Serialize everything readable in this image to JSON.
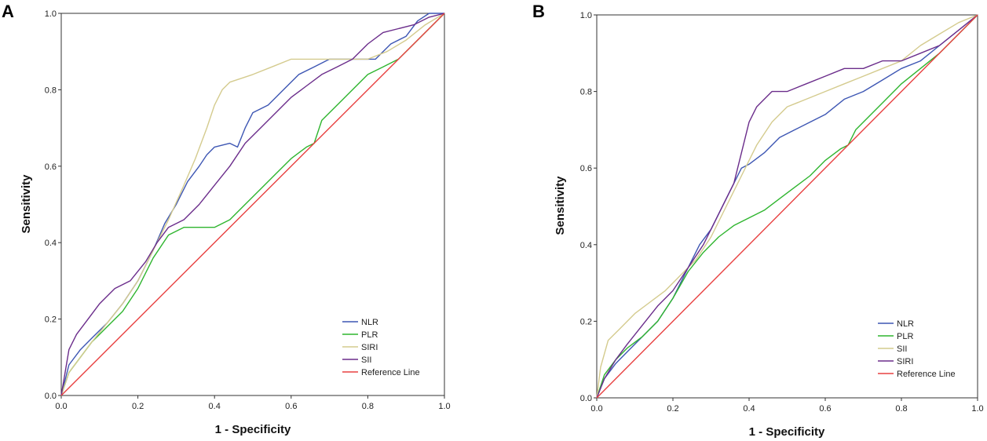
{
  "chart_data": [
    {
      "panel_label": "A",
      "type": "line",
      "xlabel": "1 - Specificity",
      "ylabel": "Sensitivity",
      "xlim": [
        0,
        1
      ],
      "ylim": [
        0,
        1
      ],
      "x_ticks": [
        "0.0",
        "0.2",
        "0.4",
        "0.6",
        "0.8",
        "1.0"
      ],
      "y_ticks": [
        "0.0",
        "0.2",
        "0.4",
        "0.6",
        "0.8",
        "1.0"
      ],
      "legend_position": "bottom-right",
      "series": [
        {
          "name": "NLR",
          "color": "#3d56b3",
          "x": [
            0,
            0.01,
            0.02,
            0.05,
            0.08,
            0.12,
            0.16,
            0.2,
            0.24,
            0.27,
            0.3,
            0.33,
            0.36,
            0.38,
            0.4,
            0.44,
            0.46,
            0.48,
            0.5,
            0.54,
            0.58,
            0.62,
            0.66,
            0.7,
            0.74,
            0.78,
            0.82,
            0.86,
            0.9,
            0.93,
            0.96,
            1.0
          ],
          "y": [
            0,
            0.04,
            0.08,
            0.12,
            0.15,
            0.19,
            0.24,
            0.3,
            0.38,
            0.45,
            0.5,
            0.56,
            0.6,
            0.63,
            0.65,
            0.66,
            0.65,
            0.7,
            0.74,
            0.76,
            0.8,
            0.84,
            0.86,
            0.88,
            0.88,
            0.88,
            0.88,
            0.92,
            0.94,
            0.98,
            1.0,
            1.0
          ]
        },
        {
          "name": "PLR",
          "color": "#2fb52f",
          "x": [
            0,
            0.02,
            0.05,
            0.08,
            0.12,
            0.16,
            0.2,
            0.24,
            0.28,
            0.32,
            0.36,
            0.4,
            0.44,
            0.48,
            0.52,
            0.56,
            0.6,
            0.64,
            0.66,
            0.68,
            0.72,
            0.76,
            0.8,
            0.84,
            0.88,
            0.92,
            0.96,
            1.0
          ],
          "y": [
            0,
            0.06,
            0.1,
            0.14,
            0.18,
            0.22,
            0.28,
            0.36,
            0.42,
            0.44,
            0.44,
            0.44,
            0.46,
            0.5,
            0.54,
            0.58,
            0.62,
            0.65,
            0.66,
            0.72,
            0.76,
            0.8,
            0.84,
            0.86,
            0.88,
            0.92,
            0.96,
            1.0
          ]
        },
        {
          "name": "SIRI",
          "color": "#d4cb8e",
          "x": [
            0,
            0.02,
            0.05,
            0.08,
            0.12,
            0.16,
            0.2,
            0.24,
            0.28,
            0.32,
            0.35,
            0.38,
            0.4,
            0.42,
            0.44,
            0.47,
            0.5,
            0.55,
            0.6,
            0.65,
            0.7,
            0.75,
            0.8,
            0.85,
            0.9,
            0.95,
            1.0
          ],
          "y": [
            0,
            0.06,
            0.1,
            0.14,
            0.19,
            0.24,
            0.3,
            0.38,
            0.46,
            0.55,
            0.62,
            0.7,
            0.76,
            0.8,
            0.82,
            0.83,
            0.84,
            0.86,
            0.88,
            0.88,
            0.88,
            0.88,
            0.88,
            0.9,
            0.93,
            0.97,
            1.0
          ]
        },
        {
          "name": "SII",
          "color": "#6b2d8b",
          "x": [
            0,
            0.02,
            0.04,
            0.07,
            0.1,
            0.14,
            0.18,
            0.22,
            0.25,
            0.28,
            0.32,
            0.36,
            0.4,
            0.44,
            0.48,
            0.52,
            0.56,
            0.6,
            0.64,
            0.68,
            0.72,
            0.76,
            0.8,
            0.84,
            0.88,
            0.92,
            0.96,
            1.0
          ],
          "y": [
            0,
            0.12,
            0.16,
            0.2,
            0.24,
            0.28,
            0.3,
            0.35,
            0.4,
            0.44,
            0.46,
            0.5,
            0.55,
            0.6,
            0.66,
            0.7,
            0.74,
            0.78,
            0.81,
            0.84,
            0.86,
            0.88,
            0.92,
            0.95,
            0.96,
            0.97,
            0.99,
            1.0
          ]
        },
        {
          "name": "Reference Line",
          "color": "#e84040",
          "x": [
            0,
            1
          ],
          "y": [
            0,
            1
          ]
        }
      ]
    },
    {
      "panel_label": "B",
      "type": "line",
      "xlabel": "1 - Specificity",
      "ylabel": "Sensitivity",
      "xlim": [
        0,
        1
      ],
      "ylim": [
        0,
        1
      ],
      "x_ticks": [
        "0.0",
        "0.2",
        "0.4",
        "0.6",
        "0.8",
        "1.0"
      ],
      "y_ticks": [
        "0.0",
        "0.2",
        "0.4",
        "0.6",
        "0.8",
        "1.0"
      ],
      "legend_position": "bottom-right",
      "series": [
        {
          "name": "NLR",
          "color": "#3d56b3",
          "x": [
            0,
            0.02,
            0.05,
            0.08,
            0.12,
            0.16,
            0.2,
            0.24,
            0.27,
            0.3,
            0.33,
            0.36,
            0.38,
            0.4,
            0.44,
            0.48,
            0.52,
            0.56,
            0.6,
            0.65,
            0.7,
            0.75,
            0.8,
            0.85,
            0.9,
            0.95,
            1.0
          ],
          "y": [
            0,
            0.05,
            0.09,
            0.12,
            0.16,
            0.2,
            0.26,
            0.34,
            0.4,
            0.44,
            0.5,
            0.56,
            0.6,
            0.61,
            0.64,
            0.68,
            0.7,
            0.72,
            0.74,
            0.78,
            0.8,
            0.83,
            0.86,
            0.88,
            0.92,
            0.96,
            1.0
          ]
        },
        {
          "name": "PLR",
          "color": "#2fb52f",
          "x": [
            0,
            0.02,
            0.05,
            0.08,
            0.12,
            0.16,
            0.2,
            0.24,
            0.28,
            0.32,
            0.36,
            0.4,
            0.44,
            0.48,
            0.52,
            0.56,
            0.6,
            0.64,
            0.66,
            0.68,
            0.72,
            0.76,
            0.8,
            0.85,
            0.9,
            0.95,
            1.0
          ],
          "y": [
            0,
            0.06,
            0.1,
            0.13,
            0.16,
            0.2,
            0.26,
            0.33,
            0.38,
            0.42,
            0.45,
            0.47,
            0.49,
            0.52,
            0.55,
            0.58,
            0.62,
            0.65,
            0.66,
            0.7,
            0.74,
            0.78,
            0.82,
            0.86,
            0.9,
            0.95,
            1.0
          ]
        },
        {
          "name": "SII",
          "color": "#d4cb8e",
          "x": [
            0,
            0.01,
            0.03,
            0.06,
            0.1,
            0.14,
            0.18,
            0.22,
            0.26,
            0.3,
            0.34,
            0.38,
            0.42,
            0.46,
            0.5,
            0.55,
            0.6,
            0.65,
            0.7,
            0.75,
            0.8,
            0.85,
            0.9,
            0.95,
            1.0
          ],
          "y": [
            0,
            0.08,
            0.15,
            0.18,
            0.22,
            0.25,
            0.28,
            0.32,
            0.36,
            0.42,
            0.5,
            0.58,
            0.66,
            0.72,
            0.76,
            0.78,
            0.8,
            0.82,
            0.84,
            0.86,
            0.88,
            0.92,
            0.95,
            0.98,
            1.0
          ]
        },
        {
          "name": "SIRI",
          "color": "#6b2d8b",
          "x": [
            0,
            0.02,
            0.05,
            0.08,
            0.12,
            0.16,
            0.2,
            0.24,
            0.28,
            0.32,
            0.36,
            0.38,
            0.4,
            0.42,
            0.46,
            0.5,
            0.55,
            0.6,
            0.65,
            0.7,
            0.75,
            0.8,
            0.85,
            0.9,
            0.95,
            1.0
          ],
          "y": [
            0,
            0.05,
            0.1,
            0.14,
            0.19,
            0.24,
            0.28,
            0.34,
            0.4,
            0.48,
            0.56,
            0.64,
            0.72,
            0.76,
            0.8,
            0.8,
            0.82,
            0.84,
            0.86,
            0.86,
            0.88,
            0.88,
            0.9,
            0.92,
            0.96,
            1.0
          ]
        },
        {
          "name": "Reference Line",
          "color": "#e84040",
          "x": [
            0,
            1
          ],
          "y": [
            0,
            1
          ]
        }
      ]
    }
  ]
}
